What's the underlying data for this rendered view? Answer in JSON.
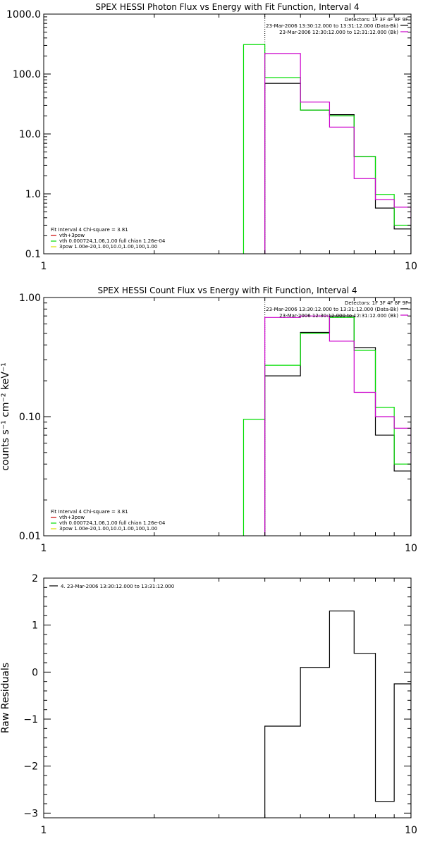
{
  "chart_data": [
    {
      "type": "line",
      "step": true,
      "title": "SPEX HESSI Photon Flux vs Energy with Fit Function, Interval 4",
      "xlabel": "",
      "ylabel": "",
      "xscale": "log",
      "yscale": "log",
      "xlim": [
        1,
        10
      ],
      "ylim": [
        0.1,
        1000
      ],
      "xticks": [
        "1",
        "10"
      ],
      "yticks": [
        "0.1",
        "1.0",
        "10.0",
        "100.0",
        "1000.0"
      ],
      "vline_x": 4,
      "legend_top": {
        "title": "Detectors: 1F 3F 4F 8F 9F",
        "entries": [
          {
            "label": "23-Mar-2006 13:30:12.000 to 13:31:12.000 (Data-Bk)",
            "color": "#000000"
          },
          {
            "label": "23-Mar-2006 12:30:12.000 to 12:31:12.000 (Bk)",
            "color": "#cc00cc"
          }
        ]
      },
      "legend_bottom": {
        "title": "Fit Interval 4   Chi-square = 3.81",
        "entries": [
          {
            "label": "vth+3pow",
            "color": "#cc0000"
          },
          {
            "label": "vth 0.000724,1.06,1.00  full chian 1.26e-04",
            "color": "#00dd00"
          },
          {
            "label": "3pow 1.00e-20,1.00,10.0,1.00,100,1.00",
            "color": "#dddd00"
          }
        ]
      },
      "series": [
        {
          "color": "#000000",
          "edges": [
            4,
            5,
            6,
            7,
            8,
            9,
            10
          ],
          "values": [
            70,
            25,
            21,
            4.2,
            0.58,
            0.26
          ]
        },
        {
          "color": "#00dd00",
          "edges": [
            3.5,
            4,
            5,
            6,
            7,
            8,
            9,
            10
          ],
          "values": [
            310,
            87,
            25,
            20,
            4.2,
            0.98,
            0.3
          ]
        },
        {
          "color": "#cc00cc",
          "edges": [
            4,
            5,
            6,
            7,
            8,
            9,
            10
          ],
          "values": [
            220,
            34,
            13,
            1.8,
            0.8,
            0.6
          ]
        }
      ]
    },
    {
      "type": "line",
      "step": true,
      "title": "SPEX HESSI Count Flux vs Energy with Fit Function, Interval 4",
      "xlabel": "",
      "ylabel": "counts s⁻¹ cm⁻² keV⁻¹",
      "xscale": "log",
      "yscale": "log",
      "xlim": [
        1,
        10
      ],
      "ylim": [
        0.01,
        1
      ],
      "xticks": [
        "1",
        "10"
      ],
      "yticks": [
        "0.01",
        "0.10",
        "1.00"
      ],
      "vline_x": 4,
      "legend_top": {
        "title": "Detectors: 1F 3F 4F 8F 9F",
        "entries": [
          {
            "label": "23-Mar-2006 13:30:12.000 to 13:31:12.000 (Data-Bk)",
            "color": "#000000"
          },
          {
            "label": "23-Mar-2006 12:30:12.000 to 12:31:12.000 (Bk)",
            "color": "#cc00cc"
          }
        ]
      },
      "legend_bottom": {
        "title": "Fit Interval 4   Chi-square = 3.81",
        "entries": [
          {
            "label": "vth+3pow",
            "color": "#cc0000"
          },
          {
            "label": "vth 0.000724,1.06,1.00  full chian 1.26e-04",
            "color": "#00dd00"
          },
          {
            "label": "3pow 1.00e-20,1.00,10.0,1.00,100,1.00",
            "color": "#dddd00"
          }
        ]
      },
      "series": [
        {
          "color": "#000000",
          "edges": [
            4,
            5,
            6,
            7,
            8,
            9,
            10
          ],
          "values": [
            0.22,
            0.51,
            0.7,
            0.38,
            0.07,
            0.035
          ]
        },
        {
          "color": "#00dd00",
          "edges": [
            3.5,
            4,
            5,
            6,
            7,
            8,
            9,
            10
          ],
          "values": [
            0.095,
            0.27,
            0.5,
            0.68,
            0.36,
            0.12,
            0.04
          ]
        },
        {
          "color": "#cc00cc",
          "edges": [
            4,
            5,
            6,
            7,
            8,
            9,
            10
          ],
          "values": [
            0.68,
            0.7,
            0.43,
            0.16,
            0.1,
            0.08
          ]
        }
      ]
    },
    {
      "type": "line",
      "step": true,
      "title": "",
      "xlabel": "",
      "ylabel": "Raw Residuals",
      "xscale": "log",
      "yscale": "linear",
      "xlim": [
        1,
        10
      ],
      "ylim": [
        -3.1,
        2
      ],
      "xticks": [
        "1",
        "10"
      ],
      "yticks": [
        "−3",
        "−2",
        "−1",
        "0",
        "1",
        "2"
      ],
      "legend_top": {
        "title": "",
        "entries": [
          {
            "label": "4. 23-Mar-2006 13:30:12.000 to 13:31:12.000",
            "color": "#000000"
          }
        ]
      },
      "series": [
        {
          "color": "#000000",
          "edges": [
            4,
            5,
            6,
            7,
            8,
            9,
            10
          ],
          "values": [
            -1.15,
            0.1,
            1.3,
            0.4,
            -2.75,
            -0.25
          ]
        }
      ]
    }
  ]
}
